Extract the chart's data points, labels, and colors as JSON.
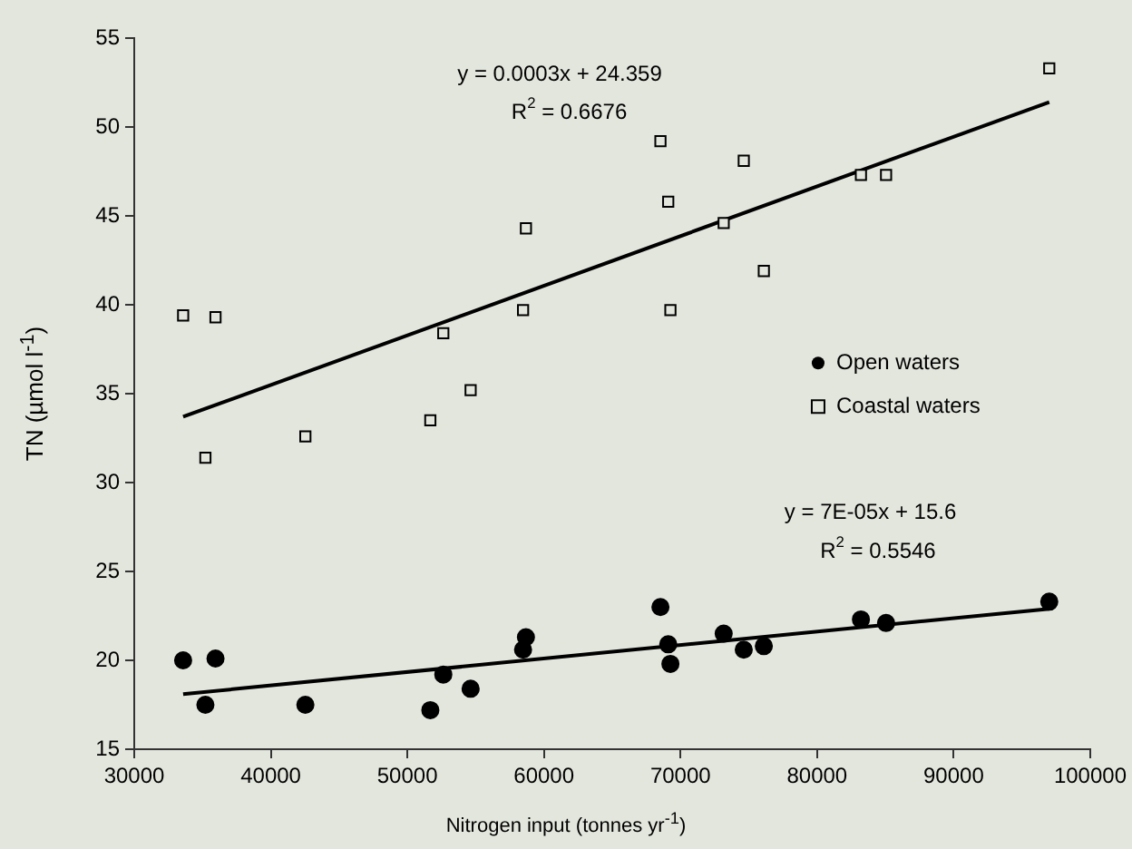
{
  "chart_data": {
    "type": "scatter",
    "xlabel": "Nitrogen input (tonnes yr$^{-1}$)",
    "ylabel": "TN (µmol l$^{-1}$)",
    "xlim": [
      30000,
      100000
    ],
    "xticks": [
      30000,
      40000,
      50000,
      60000,
      70000,
      80000,
      90000,
      100000
    ],
    "ylim": [
      15,
      55
    ],
    "yticks": [
      15,
      20,
      25,
      30,
      35,
      40,
      45,
      50,
      55
    ],
    "grid": false,
    "legend": "right",
    "annotations": [
      "y = 0.0003x + 24.359",
      "R$^{2}$ = 0.6676",
      "y = 7E-05x + 15.6",
      "R$^{2}$ = 0.5546"
    ],
    "series": [
      {
        "name": "Open waters",
        "color": "#000000",
        "marker": "circle",
        "x": [
          33580,
          35210,
          35950,
          42530,
          51680,
          52630,
          54630,
          58470,
          58680,
          68530,
          69100,
          69260,
          73160,
          74630,
          76100,
          83210,
          85050,
          97000
        ],
        "values": [
          20.0,
          17.5,
          20.1,
          17.5,
          17.2,
          19.2,
          18.4,
          20.6,
          21.3,
          23.0,
          20.9,
          19.8,
          21.5,
          20.6,
          20.8,
          22.3,
          22.1,
          23.3
        ]
      },
      {
        "name": "Coastal waters",
        "color": "#000000",
        "marker": "square",
        "x": [
          33580,
          35210,
          35950,
          42530,
          51680,
          52630,
          54630,
          58470,
          58680,
          68530,
          69100,
          69260,
          73160,
          74630,
          76100,
          83210,
          85050,
          97000
        ],
        "values": [
          39.4,
          31.4,
          39.3,
          32.6,
          33.5,
          38.4,
          35.2,
          39.7,
          44.3,
          49.2,
          45.8,
          39.7,
          44.6,
          48.1,
          41.9,
          47.3,
          47.3,
          53.3
        ]
      },
      {
        "type": "line",
        "color": "#000000",
        "x": [
          33580,
          97000
        ],
        "values": [
          33.7,
          51.4
        ]
      },
      {
        "type": "line",
        "color": "#000000",
        "x": [
          33580,
          97000
        ],
        "values": [
          18.1,
          22.9
        ]
      }
    ]
  }
}
